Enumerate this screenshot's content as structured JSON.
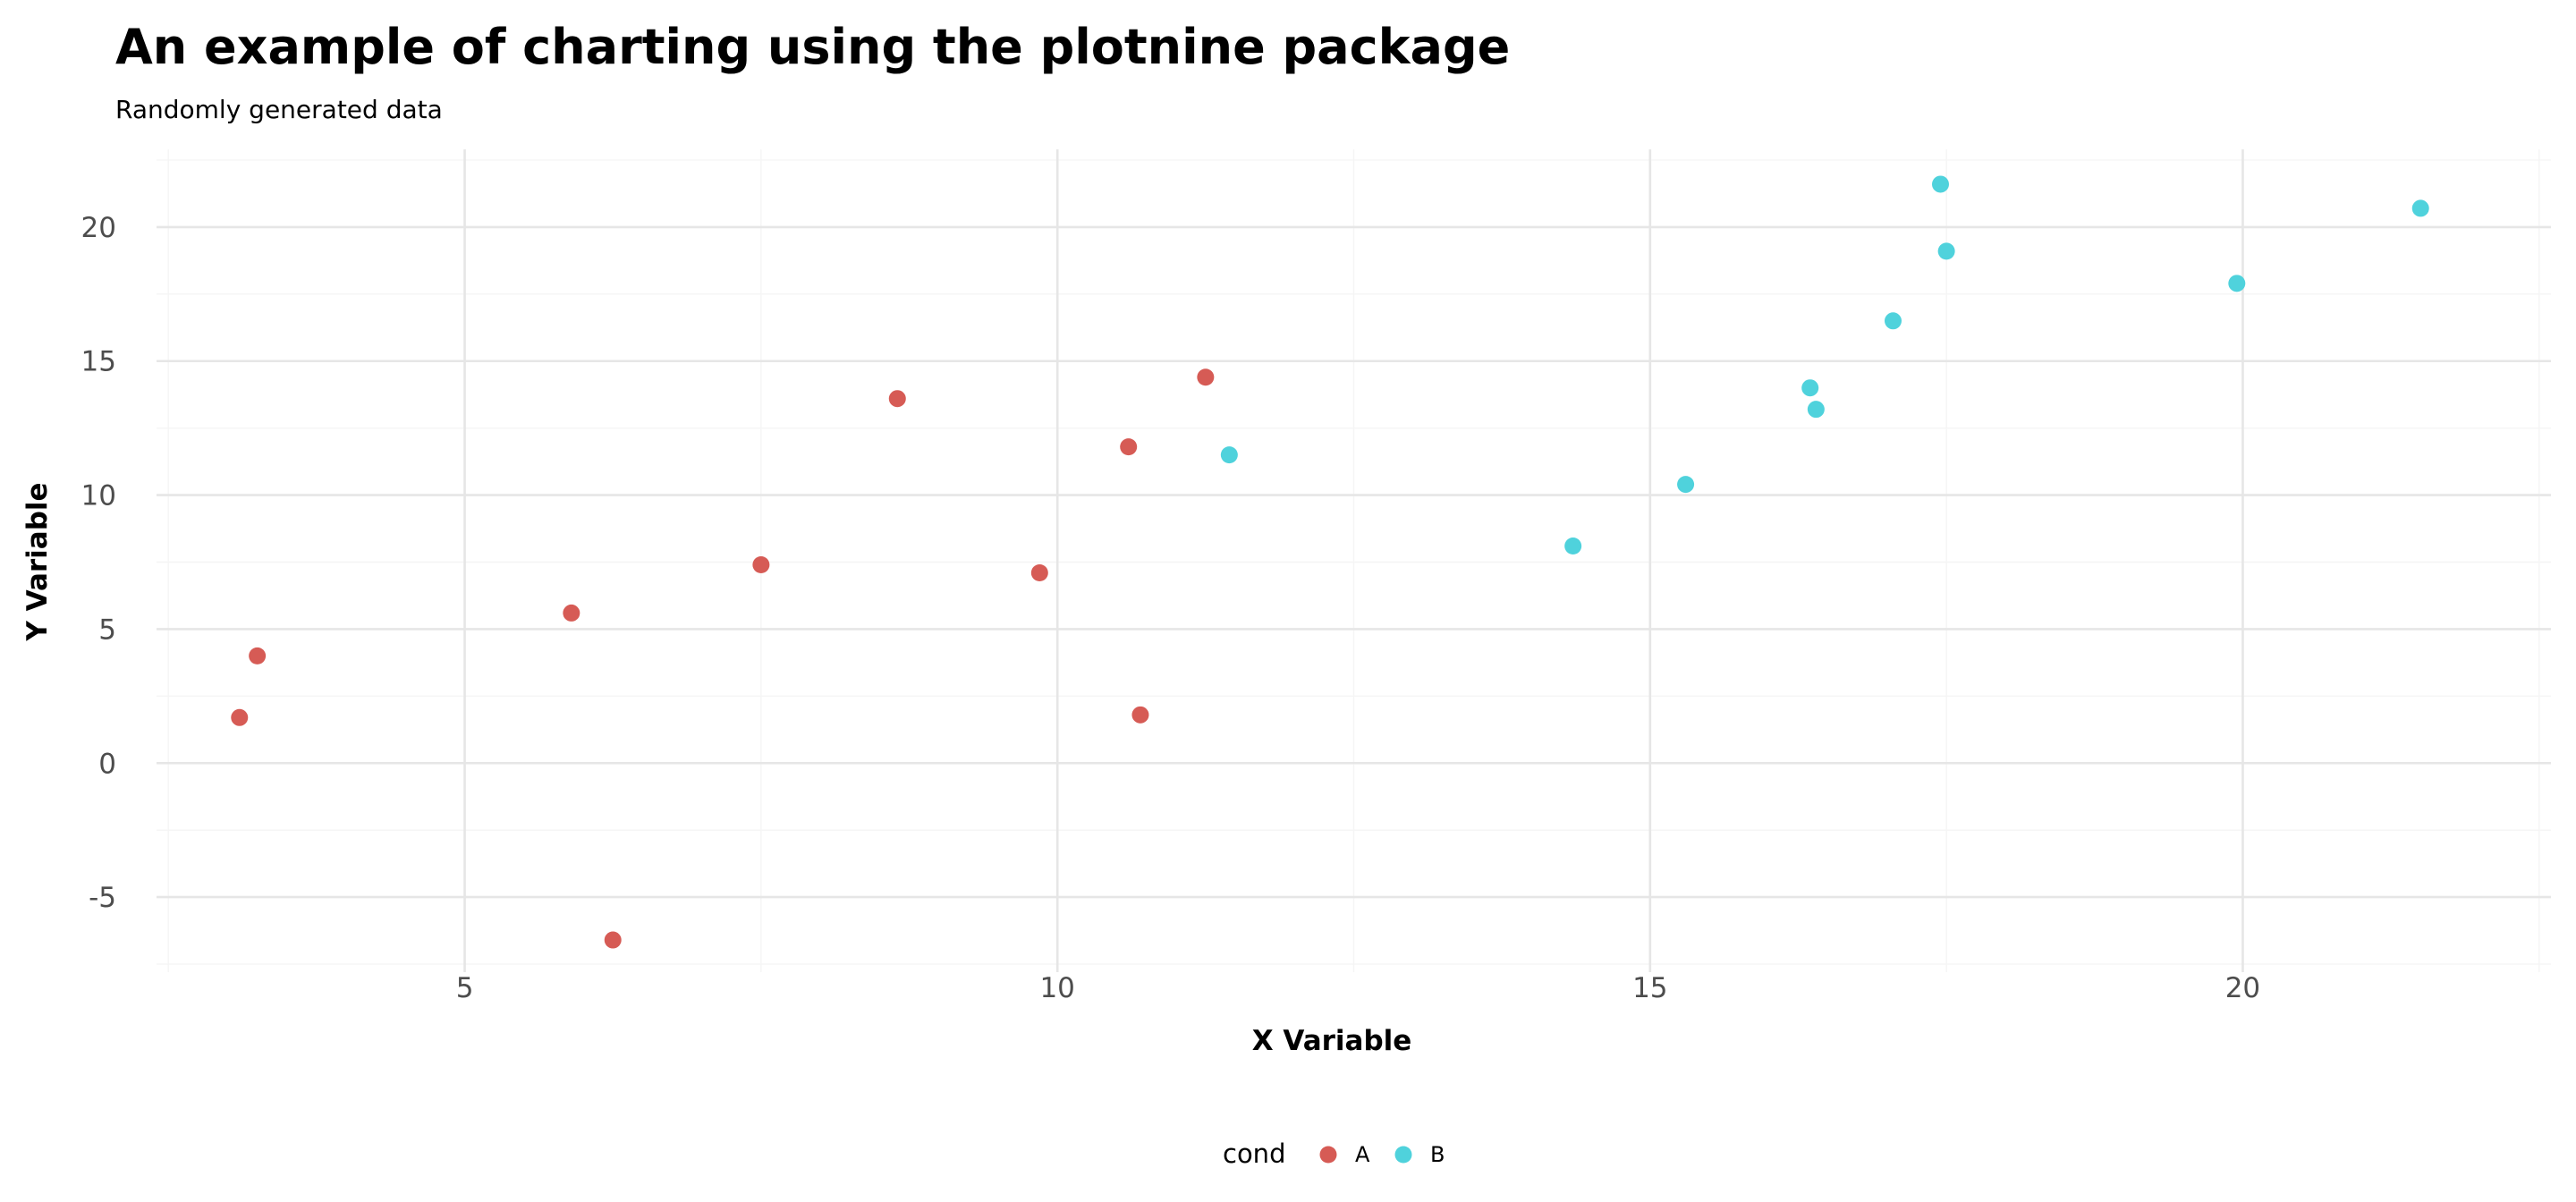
{
  "chart_data": {
    "type": "scatter",
    "title": "An example of charting using the plotnine package",
    "subtitle": "Randomly generated data",
    "xlabel": "X Variable",
    "ylabel": "Y Variable",
    "xlim": [
      2.4,
      22.6
    ],
    "ylim": [
      -7.8,
      22.9
    ],
    "x_ticks": [
      5,
      10,
      15,
      20
    ],
    "x_tick_labels": [
      "5",
      "10",
      "15",
      "20"
    ],
    "x_minor_ticks": [
      2.5,
      7.5,
      12.5,
      17.5,
      22.5
    ],
    "y_ticks": [
      -5,
      0,
      5,
      10,
      15,
      20
    ],
    "y_tick_labels": [
      "-5",
      "0",
      "5",
      "10",
      "15",
      "20"
    ],
    "y_minor_ticks": [
      -7.5,
      -2.5,
      2.5,
      7.5,
      12.5,
      17.5,
      22.5
    ],
    "grid": true,
    "legend": {
      "title": "cond",
      "position": "bottom",
      "entries": [
        "A",
        "B"
      ]
    },
    "colors": {
      "A": "#d65b55",
      "B": "#4fd2dc"
    },
    "series": [
      {
        "name": "A",
        "points": [
          [
            3.1,
            1.7
          ],
          [
            3.25,
            4.0
          ],
          [
            5.9,
            5.6
          ],
          [
            6.25,
            -6.6
          ],
          [
            7.5,
            7.4
          ],
          [
            8.65,
            13.6
          ],
          [
            9.85,
            7.1
          ],
          [
            10.6,
            11.8
          ],
          [
            10.7,
            1.8
          ],
          [
            11.25,
            14.4
          ]
        ]
      },
      {
        "name": "B",
        "points": [
          [
            11.45,
            11.5
          ],
          [
            14.35,
            8.1
          ],
          [
            15.3,
            10.4
          ],
          [
            16.35,
            14.0
          ],
          [
            16.4,
            13.2
          ],
          [
            17.05,
            16.5
          ],
          [
            17.45,
            21.6
          ],
          [
            17.5,
            19.1
          ],
          [
            19.95,
            17.9
          ],
          [
            21.5,
            20.7
          ]
        ]
      }
    ]
  }
}
